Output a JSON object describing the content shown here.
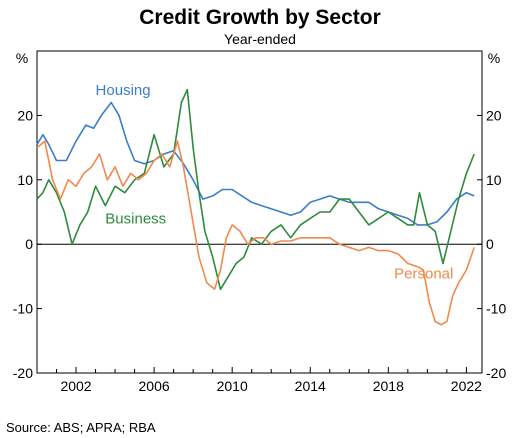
{
  "chart_data": {
    "type": "line",
    "title": "Credit Growth by Sector",
    "subtitle": "Year-ended",
    "y_unit_left": "%",
    "y_unit_right": "%",
    "ylim": [
      -20,
      30
    ],
    "yticks": [
      -20,
      -10,
      0,
      10,
      20
    ],
    "xlim": [
      2000.0,
      2022.8
    ],
    "xticks": [
      2002,
      2006,
      2010,
      2014,
      2018,
      2022
    ],
    "grid": false,
    "zero_line": true,
    "source": "Source:  ABS; APRA; RBA",
    "colors": {
      "housing": "#3a7ec8",
      "business": "#2f8a3c",
      "personal": "#f08a4b"
    },
    "series": [
      {
        "name": "Housing",
        "key": "housing",
        "points": [
          [
            2000.0,
            15.5
          ],
          [
            2000.3,
            17
          ],
          [
            2000.6,
            15.5
          ],
          [
            2001.0,
            13
          ],
          [
            2001.5,
            13
          ],
          [
            2002.0,
            16
          ],
          [
            2002.5,
            18.5
          ],
          [
            2002.9,
            18
          ],
          [
            2003.3,
            20
          ],
          [
            2003.8,
            22
          ],
          [
            2004.2,
            20
          ],
          [
            2004.6,
            16
          ],
          [
            2005.0,
            13
          ],
          [
            2005.5,
            12.5
          ],
          [
            2006.0,
            13
          ],
          [
            2006.5,
            14
          ],
          [
            2007.0,
            14.5
          ],
          [
            2007.5,
            12.5
          ],
          [
            2008.0,
            10
          ],
          [
            2008.5,
            7
          ],
          [
            2009.0,
            7.5
          ],
          [
            2009.5,
            8.5
          ],
          [
            2010.0,
            8.5
          ],
          [
            2010.5,
            7.5
          ],
          [
            2011.0,
            6.5
          ],
          [
            2011.5,
            6
          ],
          [
            2012.0,
            5.5
          ],
          [
            2012.5,
            5
          ],
          [
            2013.0,
            4.5
          ],
          [
            2013.5,
            5
          ],
          [
            2014.0,
            6.5
          ],
          [
            2014.5,
            7
          ],
          [
            2015.0,
            7.5
          ],
          [
            2015.5,
            7
          ],
          [
            2016.0,
            6.5
          ],
          [
            2016.5,
            6.5
          ],
          [
            2017.0,
            6.5
          ],
          [
            2017.5,
            5.5
          ],
          [
            2018.0,
            5
          ],
          [
            2018.5,
            4.5
          ],
          [
            2019.0,
            4
          ],
          [
            2019.5,
            3
          ],
          [
            2020.0,
            3
          ],
          [
            2020.5,
            3.5
          ],
          [
            2021.0,
            5
          ],
          [
            2021.5,
            7
          ],
          [
            2022.0,
            8
          ],
          [
            2022.4,
            7.5
          ]
        ]
      },
      {
        "name": "Business",
        "key": "business",
        "points": [
          [
            2000.0,
            7
          ],
          [
            2000.3,
            8
          ],
          [
            2000.6,
            10
          ],
          [
            2001.0,
            8
          ],
          [
            2001.4,
            5
          ],
          [
            2001.8,
            0
          ],
          [
            2002.2,
            3
          ],
          [
            2002.6,
            5
          ],
          [
            2003.0,
            9
          ],
          [
            2003.5,
            6
          ],
          [
            2004.0,
            9
          ],
          [
            2004.5,
            8
          ],
          [
            2005.0,
            10
          ],
          [
            2005.5,
            11
          ],
          [
            2006.0,
            17
          ],
          [
            2006.5,
            12
          ],
          [
            2007.0,
            14
          ],
          [
            2007.4,
            22
          ],
          [
            2007.7,
            24
          ],
          [
            2008.0,
            15
          ],
          [
            2008.3,
            8
          ],
          [
            2008.6,
            2
          ],
          [
            2009.0,
            -2
          ],
          [
            2009.4,
            -7
          ],
          [
            2009.8,
            -5
          ],
          [
            2010.2,
            -3
          ],
          [
            2010.6,
            -2
          ],
          [
            2011.0,
            1
          ],
          [
            2011.5,
            0
          ],
          [
            2012.0,
            2
          ],
          [
            2012.5,
            3
          ],
          [
            2013.0,
            1
          ],
          [
            2013.5,
            3
          ],
          [
            2014.0,
            4
          ],
          [
            2014.5,
            5
          ],
          [
            2015.0,
            5
          ],
          [
            2015.5,
            7
          ],
          [
            2016.0,
            7
          ],
          [
            2016.5,
            5
          ],
          [
            2017.0,
            3
          ],
          [
            2017.5,
            4
          ],
          [
            2018.0,
            5
          ],
          [
            2018.5,
            4
          ],
          [
            2019.0,
            3
          ],
          [
            2019.3,
            3
          ],
          [
            2019.6,
            8
          ],
          [
            2020.0,
            3
          ],
          [
            2020.4,
            2
          ],
          [
            2020.8,
            -3
          ],
          [
            2021.2,
            2
          ],
          [
            2021.6,
            7
          ],
          [
            2022.0,
            11
          ],
          [
            2022.4,
            14
          ]
        ]
      },
      {
        "name": "Personal",
        "key": "personal",
        "points": [
          [
            2000.0,
            15
          ],
          [
            2000.4,
            16
          ],
          [
            2000.8,
            10
          ],
          [
            2001.2,
            7
          ],
          [
            2001.6,
            10
          ],
          [
            2002.0,
            9
          ],
          [
            2002.4,
            11
          ],
          [
            2002.8,
            12
          ],
          [
            2003.2,
            14
          ],
          [
            2003.6,
            10
          ],
          [
            2004.0,
            12
          ],
          [
            2004.4,
            9
          ],
          [
            2004.8,
            11
          ],
          [
            2005.2,
            10
          ],
          [
            2005.6,
            11
          ],
          [
            2006.0,
            13
          ],
          [
            2006.4,
            14
          ],
          [
            2006.8,
            12
          ],
          [
            2007.2,
            16
          ],
          [
            2007.5,
            12
          ],
          [
            2007.9,
            5
          ],
          [
            2008.3,
            -2
          ],
          [
            2008.7,
            -6
          ],
          [
            2009.1,
            -7
          ],
          [
            2009.4,
            -4
          ],
          [
            2009.7,
            1
          ],
          [
            2010.0,
            3
          ],
          [
            2010.4,
            2
          ],
          [
            2010.8,
            0
          ],
          [
            2011.2,
            1
          ],
          [
            2011.6,
            1
          ],
          [
            2012.0,
            0
          ],
          [
            2012.5,
            0.5
          ],
          [
            2013.0,
            0.5
          ],
          [
            2013.5,
            1
          ],
          [
            2014.0,
            1
          ],
          [
            2014.5,
            1
          ],
          [
            2015.0,
            1
          ],
          [
            2015.5,
            0
          ],
          [
            2016.0,
            -0.5
          ],
          [
            2016.5,
            -1
          ],
          [
            2017.0,
            -0.5
          ],
          [
            2017.5,
            -1
          ],
          [
            2018.0,
            -1
          ],
          [
            2018.5,
            -1.5
          ],
          [
            2019.0,
            -3
          ],
          [
            2019.5,
            -3.5
          ],
          [
            2019.8,
            -4
          ],
          [
            2020.1,
            -9
          ],
          [
            2020.4,
            -12
          ],
          [
            2020.7,
            -12.5
          ],
          [
            2021.0,
            -12
          ],
          [
            2021.3,
            -8
          ],
          [
            2021.6,
            -6
          ],
          [
            2022.0,
            -4
          ],
          [
            2022.4,
            -0.5
          ]
        ]
      }
    ],
    "labels": [
      {
        "key": "housing",
        "text": "Housing",
        "x": 2003.0,
        "y": 23.2
      },
      {
        "key": "business",
        "text": "Business",
        "x": 2003.5,
        "y": 3.2
      },
      {
        "key": "personal",
        "text": "Personal",
        "x": 2018.3,
        "y": -5.3
      }
    ]
  }
}
